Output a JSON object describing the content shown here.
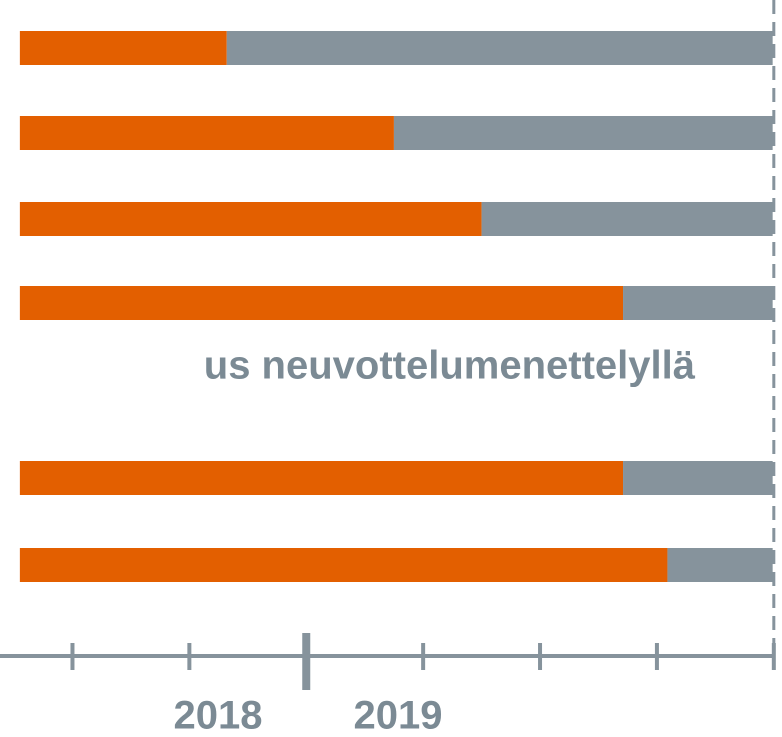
{
  "chart_data": {
    "type": "bar",
    "orientation": "horizontal",
    "stacked": true,
    "categories": [
      null,
      null,
      null,
      null,
      null,
      null
    ],
    "series": [
      {
        "color": "#e35f00",
        "values": [
          1.77,
          3.2,
          3.95,
          5.16,
          5.16,
          5.54
        ]
      },
      {
        "color": "#86939c",
        "values": [
          4.67,
          3.24,
          2.49,
          1.28,
          1.28,
          0.9
        ]
      }
    ],
    "xlim": [
      -0.17,
      6.52
    ],
    "xticks": [
      0.45,
      1.45,
      2.45,
      3.45,
      4.45,
      5.45,
      6.45
    ],
    "annotations": [
      "us neuvottelumenettelyllä",
      "2018",
      "2019"
    ]
  }
}
